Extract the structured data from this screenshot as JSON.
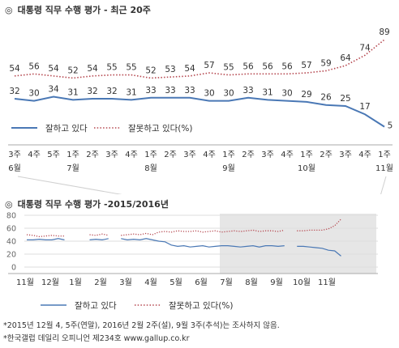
{
  "header1": {
    "symbol": "◎",
    "title": "대통령 직무 수행 평가 - 최근 20주"
  },
  "header2": {
    "symbol": "◎",
    "title": "대통령 직무 수행 평가 -2015/2016년"
  },
  "footnotes": [
    "*2015년 12월 4, 5주(연말), 2016년 2월 2주(설), 9월 3주(추석)는 조사하지 않음.",
    "*한국갤럽 데일리 오피니언 제234호 www.gallup.co.kr"
  ],
  "colors": {
    "positive": "#4a78b5",
    "negative": "#b5474f",
    "shade": "#e6e6e6",
    "axis": "#999999"
  },
  "chart_data": [
    {
      "type": "line",
      "title": "대통령 직무 수행 평가 - 최근 20주",
      "categories": [
        "3주",
        "4주",
        "5주",
        "1주",
        "2주",
        "3주",
        "4주",
        "1주",
        "2주",
        "3주",
        "4주",
        "1주",
        "2주",
        "3주",
        "4주",
        "1주",
        "2주",
        "3주",
        "4주",
        "1주"
      ],
      "month_labels": [
        {
          "index": 0,
          "label": "6월"
        },
        {
          "index": 3,
          "label": "7월"
        },
        {
          "index": 7,
          "label": "8월"
        },
        {
          "index": 11,
          "label": "9월"
        },
        {
          "index": 15,
          "label": "10월"
        },
        {
          "index": 19,
          "label": "11월"
        }
      ],
      "series": [
        {
          "name": "잘하고 있다",
          "style": "solid",
          "values": [
            32,
            30,
            34,
            31,
            32,
            32,
            31,
            33,
            33,
            33,
            30,
            30,
            33,
            31,
            30,
            29,
            26,
            25,
            17,
            5
          ]
        },
        {
          "name": "잘못하고 있다(%)",
          "style": "dotted",
          "values": [
            54,
            56,
            54,
            52,
            54,
            55,
            55,
            52,
            53,
            54,
            57,
            55,
            56,
            56,
            56,
            57,
            59,
            64,
            74,
            89
          ]
        }
      ],
      "legend": [
        {
          "label": "잘하고 있다",
          "style": "solid"
        },
        {
          "label": "잘못하고 있다(%)",
          "style": "dotted"
        }
      ],
      "ylim": [
        0,
        100
      ],
      "grid": false,
      "legend_position": "bottom-left"
    },
    {
      "type": "line",
      "title": "대통령 직무 수행 평가 -2015/2016년",
      "yticks": [
        0,
        20,
        40,
        60,
        80
      ],
      "ylim": [
        0,
        90
      ],
      "month_labels": [
        "11월",
        "12월",
        "1월",
        "2월",
        "3월",
        "4월",
        "5월",
        "6월",
        "7월",
        "8월",
        "9월",
        "10월",
        "11월"
      ],
      "shaded_range": [
        8,
        12
      ],
      "series": [
        {
          "name": "잘하고 있다",
          "style": "solid",
          "segments": [
            {
              "x": [
                0,
                0.25,
                0.5,
                0.75,
                1,
                1.25,
                1.5
              ],
              "y": [
                42,
                42,
                43,
                42,
                42,
                44,
                42
              ]
            },
            {
              "x": [
                2.5,
                2.75,
                3,
                3.25
              ],
              "y": [
                42,
                43,
                42,
                44
              ]
            },
            {
              "x": [
                3.75,
                4,
                4.25,
                4.5,
                4.75,
                5,
                5.25,
                5.5,
                5.75,
                6,
                6.25,
                6.5,
                6.75,
                7,
                7.25,
                7.5,
                7.75,
                8,
                8.25,
                8.5,
                8.75,
                9,
                9.25,
                9.5,
                9.75,
                10,
                10.25
              ],
              "y": [
                44,
                42,
                43,
                42,
                44,
                42,
                40,
                39,
                34,
                32,
                33,
                31,
                32,
                33,
                31,
                32,
                33,
                33,
                32,
                31,
                32,
                33,
                31,
                33,
                33,
                32,
                33
              ]
            },
            {
              "x": [
                10.75,
                11,
                11.25,
                11.5,
                11.75,
                12,
                12.25,
                12.5
              ],
              "y": [
                32,
                32,
                31,
                30,
                29,
                26,
                25,
                17
              ]
            }
          ]
        },
        {
          "name": "잘못하고 있다(%)",
          "style": "dotted",
          "segments": [
            {
              "x": [
                0,
                0.25,
                0.5,
                0.75,
                1,
                1.25,
                1.5
              ],
              "y": [
                50,
                49,
                47,
                48,
                49,
                48,
                48
              ]
            },
            {
              "x": [
                2.5,
                2.75,
                3,
                3.25
              ],
              "y": [
                50,
                49,
                51,
                49
              ]
            },
            {
              "x": [
                3.75,
                4,
                4.25,
                4.5,
                4.75,
                5,
                5.25,
                5.5,
                5.75,
                6,
                6.25,
                6.5,
                6.75,
                7,
                7.25,
                7.5,
                7.75,
                8,
                8.25,
                8.5,
                8.75,
                9,
                9.25,
                9.5,
                9.75,
                10,
                10.25
              ],
              "y": [
                49,
                50,
                51,
                50,
                52,
                50,
                54,
                55,
                54,
                56,
                55,
                55,
                56,
                54,
                55,
                56,
                54,
                55,
                56,
                55,
                56,
                57,
                55,
                56,
                56,
                55,
                57
              ]
            },
            {
              "x": [
                10.75,
                11,
                11.25,
                11.5,
                11.75,
                12,
                12.25,
                12.5
              ],
              "y": [
                56,
                56,
                57,
                57,
                57,
                59,
                64,
                74
              ]
            }
          ]
        }
      ],
      "legend": [
        {
          "label": "잘하고 있다",
          "style": "solid"
        },
        {
          "label": "잘못하고 있다(%)",
          "style": "dotted"
        }
      ]
    }
  ]
}
